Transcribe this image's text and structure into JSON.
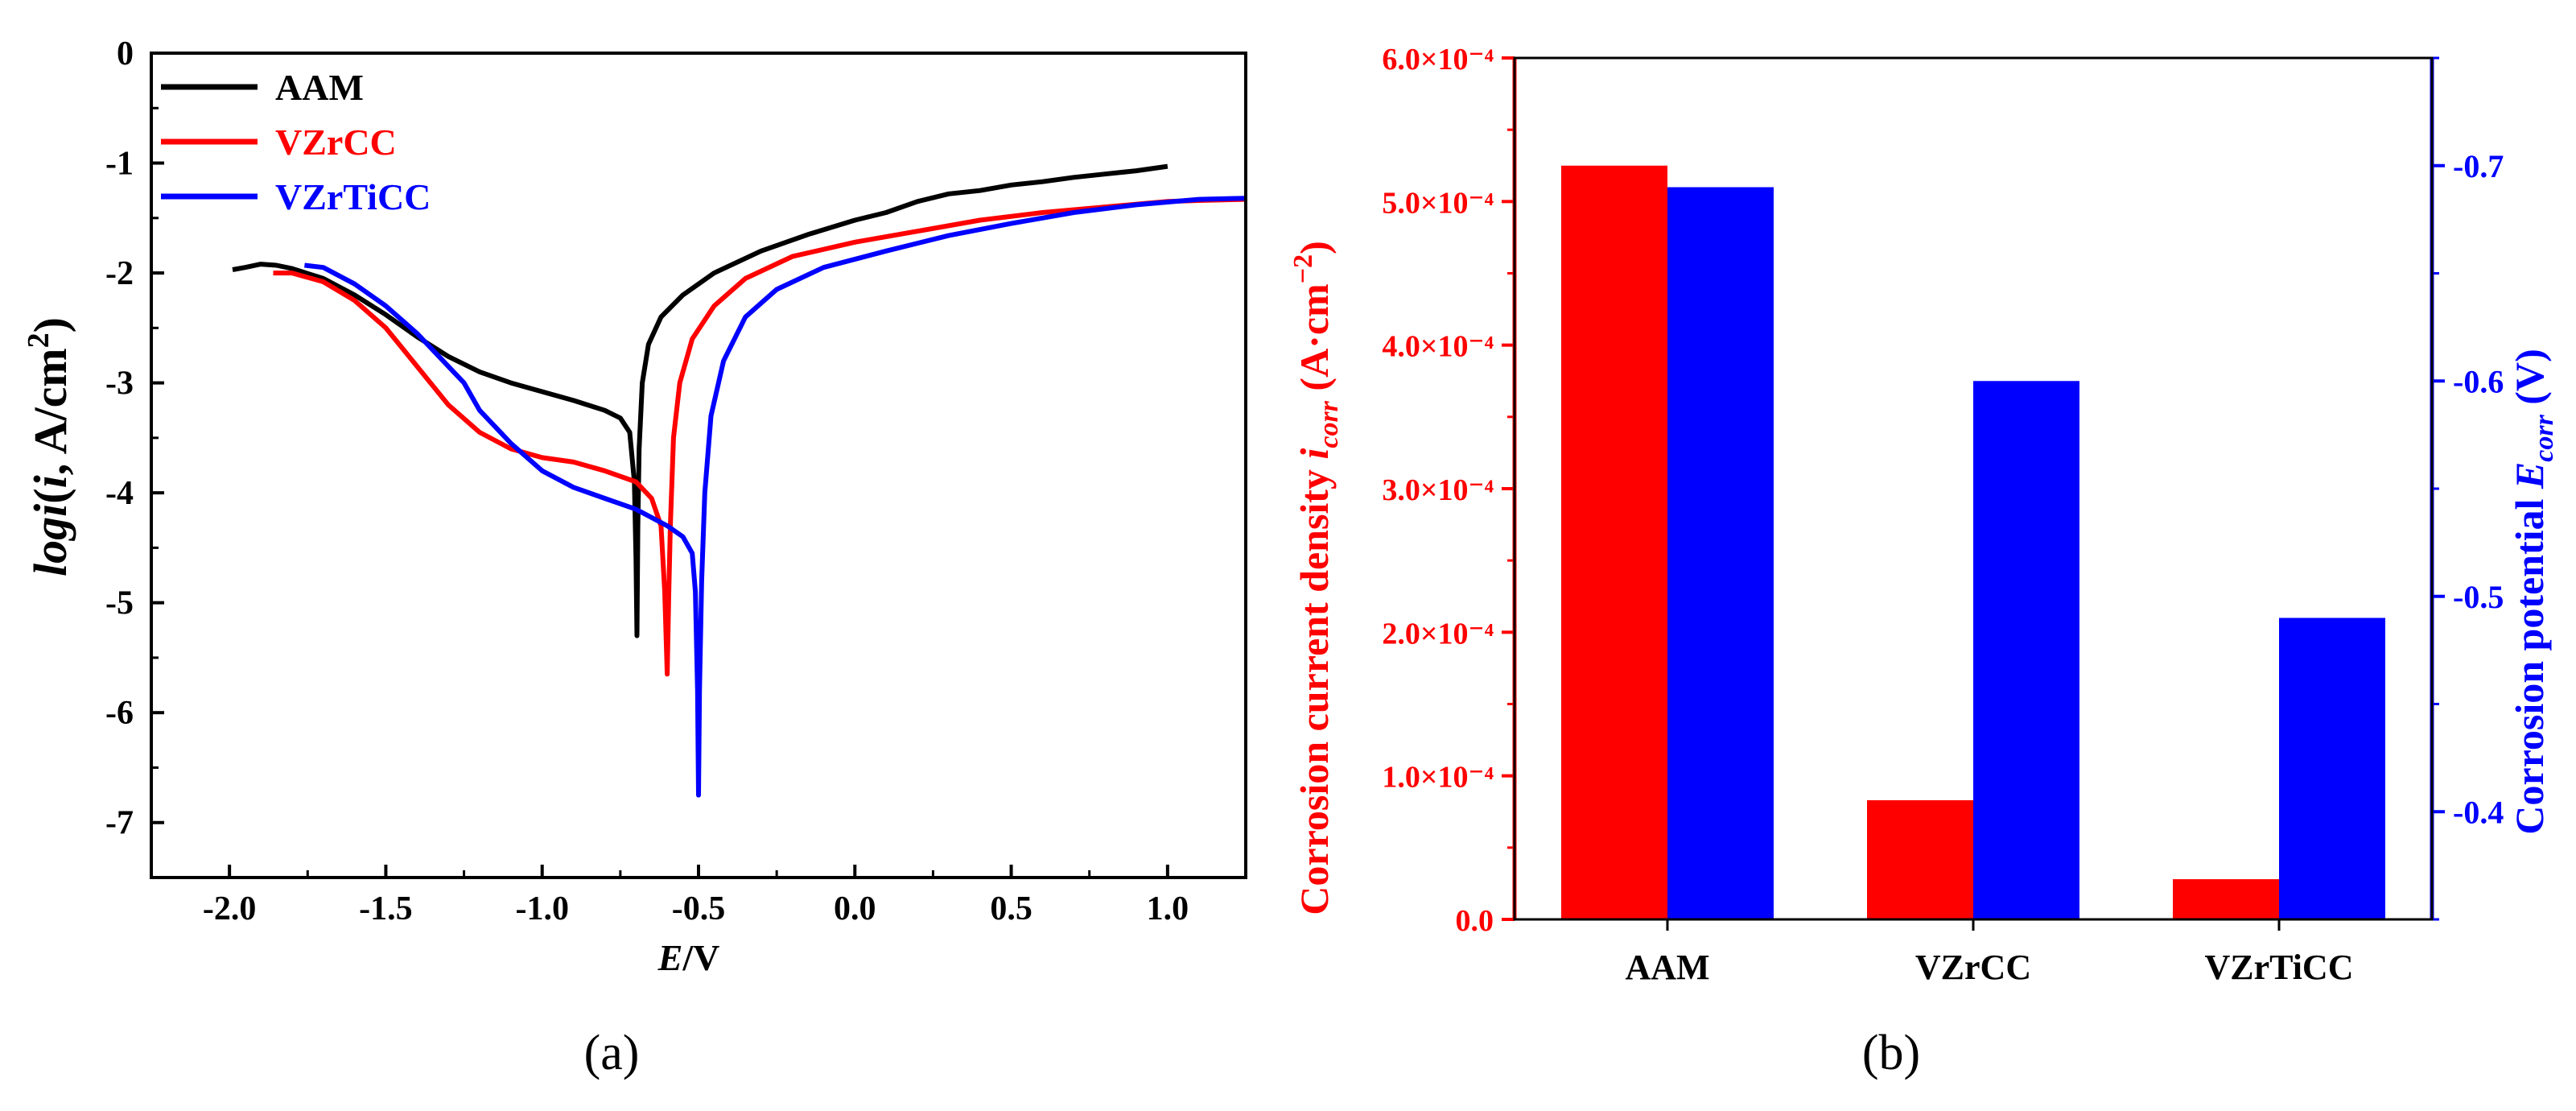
{
  "chart_data": [
    {
      "id": "a",
      "type": "line",
      "caption": "(a)",
      "xlabel": {
        "italic": "E",
        "rest": "/V"
      },
      "ylabel": {
        "pre": "log",
        "italic": "i",
        "mid": "(",
        "italic2": "i",
        "post": ", A/cm",
        "sup": "2",
        "end": ")"
      },
      "xlim": [
        -2.25,
        1.25
      ],
      "ylim": [
        -7.5,
        0
      ],
      "xticks": [
        -2.0,
        -1.5,
        -1.0,
        -0.5,
        0.0,
        0.5,
        1.0
      ],
      "xtick_labels": [
        "-2.0",
        "-1.5",
        "-1.0",
        "-0.5",
        "0.0",
        "0.5",
        "1.0"
      ],
      "yticks": [
        0,
        -1,
        -2,
        -3,
        -4,
        -5,
        -6,
        -7
      ],
      "ytick_labels": [
        "0",
        "-1",
        "-2",
        "-3",
        "-4",
        "-5",
        "-6",
        "-7"
      ],
      "legend_position": "top-left",
      "series": [
        {
          "name": "AAM",
          "color": "#000000",
          "points": [
            [
              -1.99,
              -1.97
            ],
            [
              -1.95,
              -1.95
            ],
            [
              -1.9,
              -1.92
            ],
            [
              -1.85,
              -1.93
            ],
            [
              -1.8,
              -1.96
            ],
            [
              -1.7,
              -2.05
            ],
            [
              -1.6,
              -2.2
            ],
            [
              -1.5,
              -2.38
            ],
            [
              -1.4,
              -2.58
            ],
            [
              -1.3,
              -2.76
            ],
            [
              -1.2,
              -2.9
            ],
            [
              -1.1,
              -3.0
            ],
            [
              -1.0,
              -3.08
            ],
            [
              -0.9,
              -3.16
            ],
            [
              -0.8,
              -3.25
            ],
            [
              -0.75,
              -3.32
            ],
            [
              -0.72,
              -3.45
            ],
            [
              -0.705,
              -3.9
            ],
            [
              -0.7,
              -4.6
            ],
            [
              -0.697,
              -5.3
            ],
            [
              -0.694,
              -4.3
            ],
            [
              -0.69,
              -3.6
            ],
            [
              -0.68,
              -3.0
            ],
            [
              -0.66,
              -2.65
            ],
            [
              -0.62,
              -2.4
            ],
            [
              -0.55,
              -2.2
            ],
            [
              -0.45,
              -2.0
            ],
            [
              -0.3,
              -1.8
            ],
            [
              -0.15,
              -1.65
            ],
            [
              0.0,
              -1.52
            ],
            [
              0.1,
              -1.45
            ],
            [
              0.2,
              -1.35
            ],
            [
              0.3,
              -1.28
            ],
            [
              0.4,
              -1.25
            ],
            [
              0.5,
              -1.2
            ],
            [
              0.6,
              -1.17
            ],
            [
              0.7,
              -1.13
            ],
            [
              0.8,
              -1.1
            ],
            [
              0.9,
              -1.07
            ],
            [
              1.0,
              -1.03
            ]
          ]
        },
        {
          "name": "VZrCC",
          "color": "#ff0000",
          "points": [
            [
              -1.86,
              -2.0
            ],
            [
              -1.8,
              -2.0
            ],
            [
              -1.7,
              -2.08
            ],
            [
              -1.6,
              -2.25
            ],
            [
              -1.5,
              -2.5
            ],
            [
              -1.4,
              -2.85
            ],
            [
              -1.3,
              -3.2
            ],
            [
              -1.2,
              -3.45
            ],
            [
              -1.1,
              -3.6
            ],
            [
              -1.0,
              -3.68
            ],
            [
              -0.9,
              -3.72
            ],
            [
              -0.8,
              -3.8
            ],
            [
              -0.7,
              -3.9
            ],
            [
              -0.65,
              -4.05
            ],
            [
              -0.62,
              -4.3
            ],
            [
              -0.608,
              -4.9
            ],
            [
              -0.6,
              -5.65
            ],
            [
              -0.595,
              -4.9
            ],
            [
              -0.59,
              -4.3
            ],
            [
              -0.58,
              -3.5
            ],
            [
              -0.56,
              -3.0
            ],
            [
              -0.52,
              -2.6
            ],
            [
              -0.45,
              -2.3
            ],
            [
              -0.35,
              -2.05
            ],
            [
              -0.2,
              -1.85
            ],
            [
              0.0,
              -1.72
            ],
            [
              0.2,
              -1.62
            ],
            [
              0.4,
              -1.52
            ],
            [
              0.6,
              -1.45
            ],
            [
              0.8,
              -1.4
            ],
            [
              1.0,
              -1.35
            ],
            [
              1.1,
              -1.34
            ],
            [
              1.25,
              -1.33
            ]
          ]
        },
        {
          "name": "VZrTiCC",
          "color": "#0000ff",
          "points": [
            [
              -1.76,
              -1.93
            ],
            [
              -1.7,
              -1.95
            ],
            [
              -1.6,
              -2.1
            ],
            [
              -1.5,
              -2.3
            ],
            [
              -1.4,
              -2.55
            ],
            [
              -1.3,
              -2.85
            ],
            [
              -1.25,
              -3.0
            ],
            [
              -1.2,
              -3.25
            ],
            [
              -1.1,
              -3.55
            ],
            [
              -1.0,
              -3.8
            ],
            [
              -0.9,
              -3.95
            ],
            [
              -0.8,
              -4.05
            ],
            [
              -0.7,
              -4.15
            ],
            [
              -0.6,
              -4.3
            ],
            [
              -0.55,
              -4.4
            ],
            [
              -0.52,
              -4.55
            ],
            [
              -0.51,
              -4.9
            ],
            [
              -0.503,
              -5.8
            ],
            [
              -0.5,
              -6.75
            ],
            [
              -0.497,
              -5.8
            ],
            [
              -0.49,
              -4.8
            ],
            [
              -0.48,
              -4.0
            ],
            [
              -0.46,
              -3.3
            ],
            [
              -0.42,
              -2.8
            ],
            [
              -0.35,
              -2.4
            ],
            [
              -0.25,
              -2.15
            ],
            [
              -0.1,
              -1.95
            ],
            [
              0.1,
              -1.8
            ],
            [
              0.3,
              -1.66
            ],
            [
              0.5,
              -1.55
            ],
            [
              0.7,
              -1.45
            ],
            [
              0.9,
              -1.38
            ],
            [
              1.1,
              -1.33
            ],
            [
              1.25,
              -1.32
            ]
          ]
        }
      ]
    },
    {
      "id": "b",
      "type": "bar",
      "caption": "(b)",
      "categories": [
        "AAM",
        "VZrCC",
        "VZrTiCC"
      ],
      "left_axis": {
        "label_main": "Corrosion current density ",
        "label_italic": "i",
        "label_sub": "corr",
        "label_unit": " (A·cm",
        "label_unit_sup": "−2",
        "label_end": ")",
        "color": "#ff0000",
        "ylim": [
          0,
          6.0
        ],
        "ticks": [
          0,
          1,
          2,
          3,
          4,
          5,
          6
        ],
        "tick_labels": [
          "0.0",
          "1.0×10⁻⁴",
          "2.0×10⁻⁴",
          "3.0×10⁻⁴",
          "4.0×10⁻⁴",
          "5.0×10⁻⁴",
          "6.0×10⁻⁴"
        ]
      },
      "right_axis": {
        "label_main": "Corrosion potential ",
        "label_italic": "E",
        "label_sub": "corr",
        "label_end": " (V)",
        "color": "#0000ff",
        "ylim": [
          -0.35,
          -0.75
        ],
        "ticks": [
          -0.4,
          -0.5,
          -0.6,
          -0.7
        ],
        "tick_labels": [
          "-0.4",
          "-0.5",
          "-0.6",
          "-0.7"
        ]
      },
      "series": [
        {
          "name": "i_corr",
          "axis": "left",
          "color": "#ff0000",
          "values": [
            5.25,
            0.83,
            0.28
          ]
        },
        {
          "name": "E_corr",
          "axis": "right",
          "color": "#0000ff",
          "values": [
            -0.69,
            -0.6,
            -0.49
          ]
        }
      ]
    }
  ]
}
